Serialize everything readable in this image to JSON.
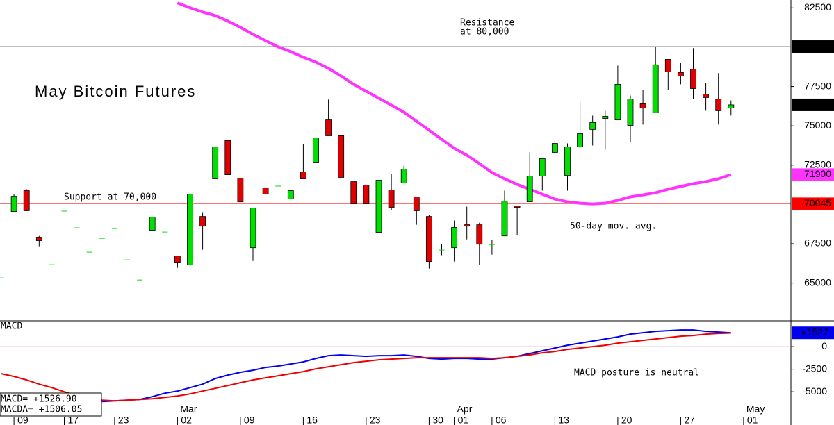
{
  "chart_data": [
    {
      "type": "candlestick",
      "title": "May Bitcoin Futures",
      "categories": [
        null,
        "09",
        null,
        null,
        null,
        "17",
        null,
        null,
        null,
        "23",
        null,
        null,
        null,
        null,
        "02",
        null,
        null,
        null,
        null,
        "09",
        null,
        null,
        null,
        null,
        "16",
        null,
        null,
        null,
        null,
        "23",
        null,
        null,
        null,
        null,
        "30",
        null,
        "01",
        null,
        null,
        "06",
        null,
        null,
        null,
        null,
        "13",
        null,
        null,
        null,
        null,
        "20",
        null,
        null,
        null,
        null,
        "27",
        null,
        null,
        null,
        null,
        "01"
      ],
      "month_labels": [
        null,
        null,
        null,
        null,
        null,
        null,
        null,
        null,
        null,
        null,
        null,
        null,
        null,
        null,
        "Mar",
        null,
        null,
        null,
        null,
        null,
        null,
        null,
        null,
        null,
        null,
        null,
        null,
        null,
        null,
        null,
        null,
        null,
        null,
        null,
        null,
        null,
        "Apr",
        null,
        null,
        null,
        null,
        null,
        null,
        null,
        null,
        null,
        null,
        null,
        null,
        null,
        null,
        null,
        null,
        null,
        null,
        null,
        null,
        null,
        null,
        "May"
      ],
      "open": [
        65350,
        69550,
        70880,
        67920,
        66190,
        69600,
        68540,
        66990,
        67870,
        68490,
        66500,
        65220,
        68360,
        68270,
        66720,
        66150,
        69240,
        71630,
        74060,
        71670,
        67250,
        71050,
        71190,
        70350,
        72070,
        72690,
        75380,
        74370,
        71450,
        71230,
        68230,
        70920,
        71360,
        70480,
        69240,
        67120,
        67250,
        68710,
        68710,
        67470,
        68000,
        69900,
        70170,
        71810,
        73310,
        71850,
        73660,
        74770,
        75470,
        75380,
        75030,
        76400,
        75830,
        79230,
        78390,
        78610,
        77020,
        76710,
        76140,
        null
      ],
      "high": [
        65350,
        70660,
        70970,
        68000,
        66190,
        69600,
        68540,
        66990,
        67870,
        68490,
        66500,
        65220,
        69200,
        68270,
        66720,
        70660,
        69510,
        73660,
        74060,
        71670,
        69770,
        71050,
        71190,
        70880,
        73840,
        74990,
        76670,
        74370,
        71450,
        71230,
        71540,
        71940,
        72470,
        70480,
        69330,
        67470,
        68980,
        69860,
        68840,
        67740,
        70880,
        69900,
        73310,
        72910,
        74060,
        73880,
        76530,
        75650,
        75960,
        78830,
        76930,
        77280,
        80020,
        79230,
        79010,
        79940,
        77730,
        78350,
        76620,
        null
      ],
      "low": [
        65350,
        69550,
        69600,
        67340,
        66190,
        69600,
        68540,
        66990,
        67870,
        68490,
        66500,
        65220,
        68360,
        68270,
        65970,
        66150,
        67120,
        71630,
        71890,
        70170,
        66410,
        70660,
        71190,
        70350,
        71630,
        72470,
        74370,
        71720,
        70040,
        70040,
        68230,
        69640,
        71360,
        68710,
        65930,
        66770,
        66370,
        67780,
        66150,
        66810,
        68000,
        68050,
        70170,
        70880,
        73220,
        70880,
        73660,
        73750,
        73480,
        75380,
        73970,
        75080,
        75830,
        77280,
        77640,
        76710,
        75960,
        75080,
        75650,
        null
      ],
      "close": [
        65350,
        70520,
        69600,
        67700,
        66190,
        69600,
        68540,
        66990,
        67870,
        68490,
        66500,
        65220,
        69200,
        68270,
        66330,
        70660,
        68620,
        73660,
        71890,
        70170,
        69770,
        70660,
        71190,
        70880,
        71630,
        74240,
        74370,
        71720,
        70040,
        70040,
        71540,
        69820,
        72250,
        69600,
        66370,
        67120,
        68540,
        68620,
        67470,
        67470,
        70210,
        69820,
        71810,
        72910,
        73880,
        73660,
        74500,
        75210,
        75610,
        77640,
        76710,
        76140,
        78880,
        78430,
        78170,
        77370,
        76800,
        75960,
        76335,
        null
      ],
      "up_color": "#00e000",
      "down_color": "#e00000",
      "overlay": {
        "label": "50-day mov. avg.",
        "color": "#ff33ff",
        "values": [
          null,
          null,
          null,
          null,
          null,
          null,
          null,
          null,
          null,
          null,
          null,
          null,
          null,
          null,
          82809,
          82499,
          82234,
          82013,
          81660,
          81262,
          80820,
          80422,
          80025,
          79715,
          79362,
          79052,
          78655,
          78169,
          77638,
          77196,
          76755,
          76313,
          75871,
          75296,
          74722,
          74147,
          73573,
          73131,
          72601,
          72026,
          71629,
          71275,
          70966,
          70656,
          70347,
          70170,
          70082,
          70038,
          70082,
          70259,
          70480,
          70612,
          70745,
          70966,
          71142,
          71319,
          71452,
          71629,
          71900,
          null
        ]
      },
      "ylim": [
        62600,
        83000
      ],
      "yticks": [
        65000,
        67500,
        72500,
        75000,
        77500,
        82500
      ],
      "price_markers": [
        {
          "value": 80040,
          "color": "#000000",
          "line": "#808080"
        },
        {
          "value": 76335,
          "color": "#000000"
        },
        {
          "value": 71900,
          "color": "#ff33ff"
        },
        {
          "value": 70045,
          "color": "#ff0000",
          "line": "#ff6060"
        }
      ],
      "annotations": [
        "Resistance",
        "at 80,000",
        "Support at 70,000"
      ]
    },
    {
      "type": "line",
      "title": "MACD",
      "series": [
        {
          "color": "#0000ee",
          "values": [
            null,
            null,
            null,
            null,
            null,
            null,
            null,
            null,
            -6077,
            -6000,
            -5923,
            -5846,
            -5538,
            -5154,
            -4923,
            -4538,
            -4154,
            -3538,
            -3154,
            -2846,
            -2615,
            -2308,
            -2154,
            -1923,
            -1692,
            -1308,
            -1000,
            -923,
            -1000,
            -1077,
            -1000,
            -1000,
            -923,
            -1077,
            -1308,
            -1385,
            -1308,
            -1308,
            -1385,
            -1385,
            -1231,
            -1077,
            -769,
            -462,
            -154,
            154,
            385,
            615,
            846,
            1077,
            1385,
            1538,
            1692,
            1769,
            1846,
            1846,
            1692,
            1615,
            1527,
            null
          ]
        },
        {
          "color": "#ee0000",
          "values": [
            -3000,
            -3308,
            -3692,
            -4154,
            -4538,
            -5000,
            -5385,
            -5692,
            -5923,
            -6000,
            -5923,
            -5846,
            -5769,
            -5615,
            -5462,
            -5231,
            -4923,
            -4615,
            -4308,
            -4000,
            -3692,
            -3462,
            -3231,
            -3000,
            -2769,
            -2462,
            -2231,
            -2000,
            -1769,
            -1615,
            -1462,
            -1385,
            -1308,
            -1231,
            -1231,
            -1231,
            -1231,
            -1231,
            -1231,
            -1308,
            -1231,
            -1077,
            -923,
            -692,
            -538,
            -308,
            -154,
            0,
            154,
            385,
            538,
            692,
            846,
            1000,
            1154,
            1231,
            1385,
            1462,
            1506,
            null
          ]
        }
      ],
      "ylim": [
        -7600,
        2850
      ],
      "yticks": [
        0,
        -2500,
        -5000
      ],
      "marker": {
        "value": 1527,
        "label": "+1527",
        "color": "#0000ee"
      },
      "legend": [
        "MACD=  +1526.90",
        "MACDA= +1506.05"
      ],
      "annotations": [
        "MACD posture is neutral"
      ]
    }
  ]
}
